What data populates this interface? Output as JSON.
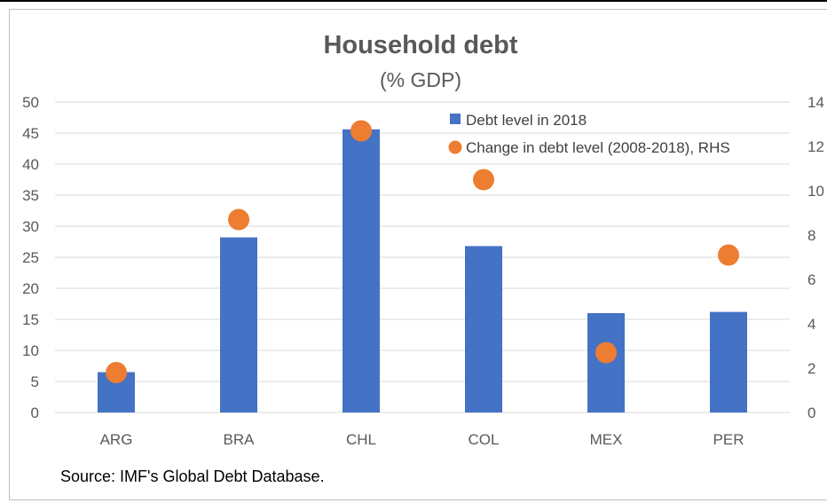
{
  "chart_data": {
    "type": "bar",
    "title": "Household debt",
    "subtitle": "(% GDP)",
    "categories": [
      "ARG",
      "BRA",
      "CHL",
      "COL",
      "MEX",
      "PER"
    ],
    "series": [
      {
        "name": "Debt level in 2018",
        "kind": "bar",
        "axis": "left",
        "color": "#4472C4",
        "values": [
          6.5,
          28.2,
          45.6,
          26.8,
          16.0,
          16.2
        ]
      },
      {
        "name": "Change in debt level (2008-2018), RHS",
        "kind": "scatter",
        "axis": "right",
        "color": "#ED7D31",
        "values": [
          1.8,
          8.7,
          12.7,
          10.5,
          2.7,
          7.1
        ]
      }
    ],
    "left_axis": {
      "ylim": [
        0,
        50
      ],
      "ticks": [
        "0",
        "5",
        "10",
        "15",
        "20",
        "25",
        "30",
        "35",
        "40",
        "45",
        "50"
      ]
    },
    "right_axis": {
      "ylim": [
        0,
        14
      ],
      "ticks": [
        "0",
        "2",
        "4",
        "6",
        "8",
        "10",
        "12",
        "14"
      ]
    },
    "grid": true,
    "legend_position": "top-right",
    "source": "Source: IMF's Global Debt Database."
  }
}
